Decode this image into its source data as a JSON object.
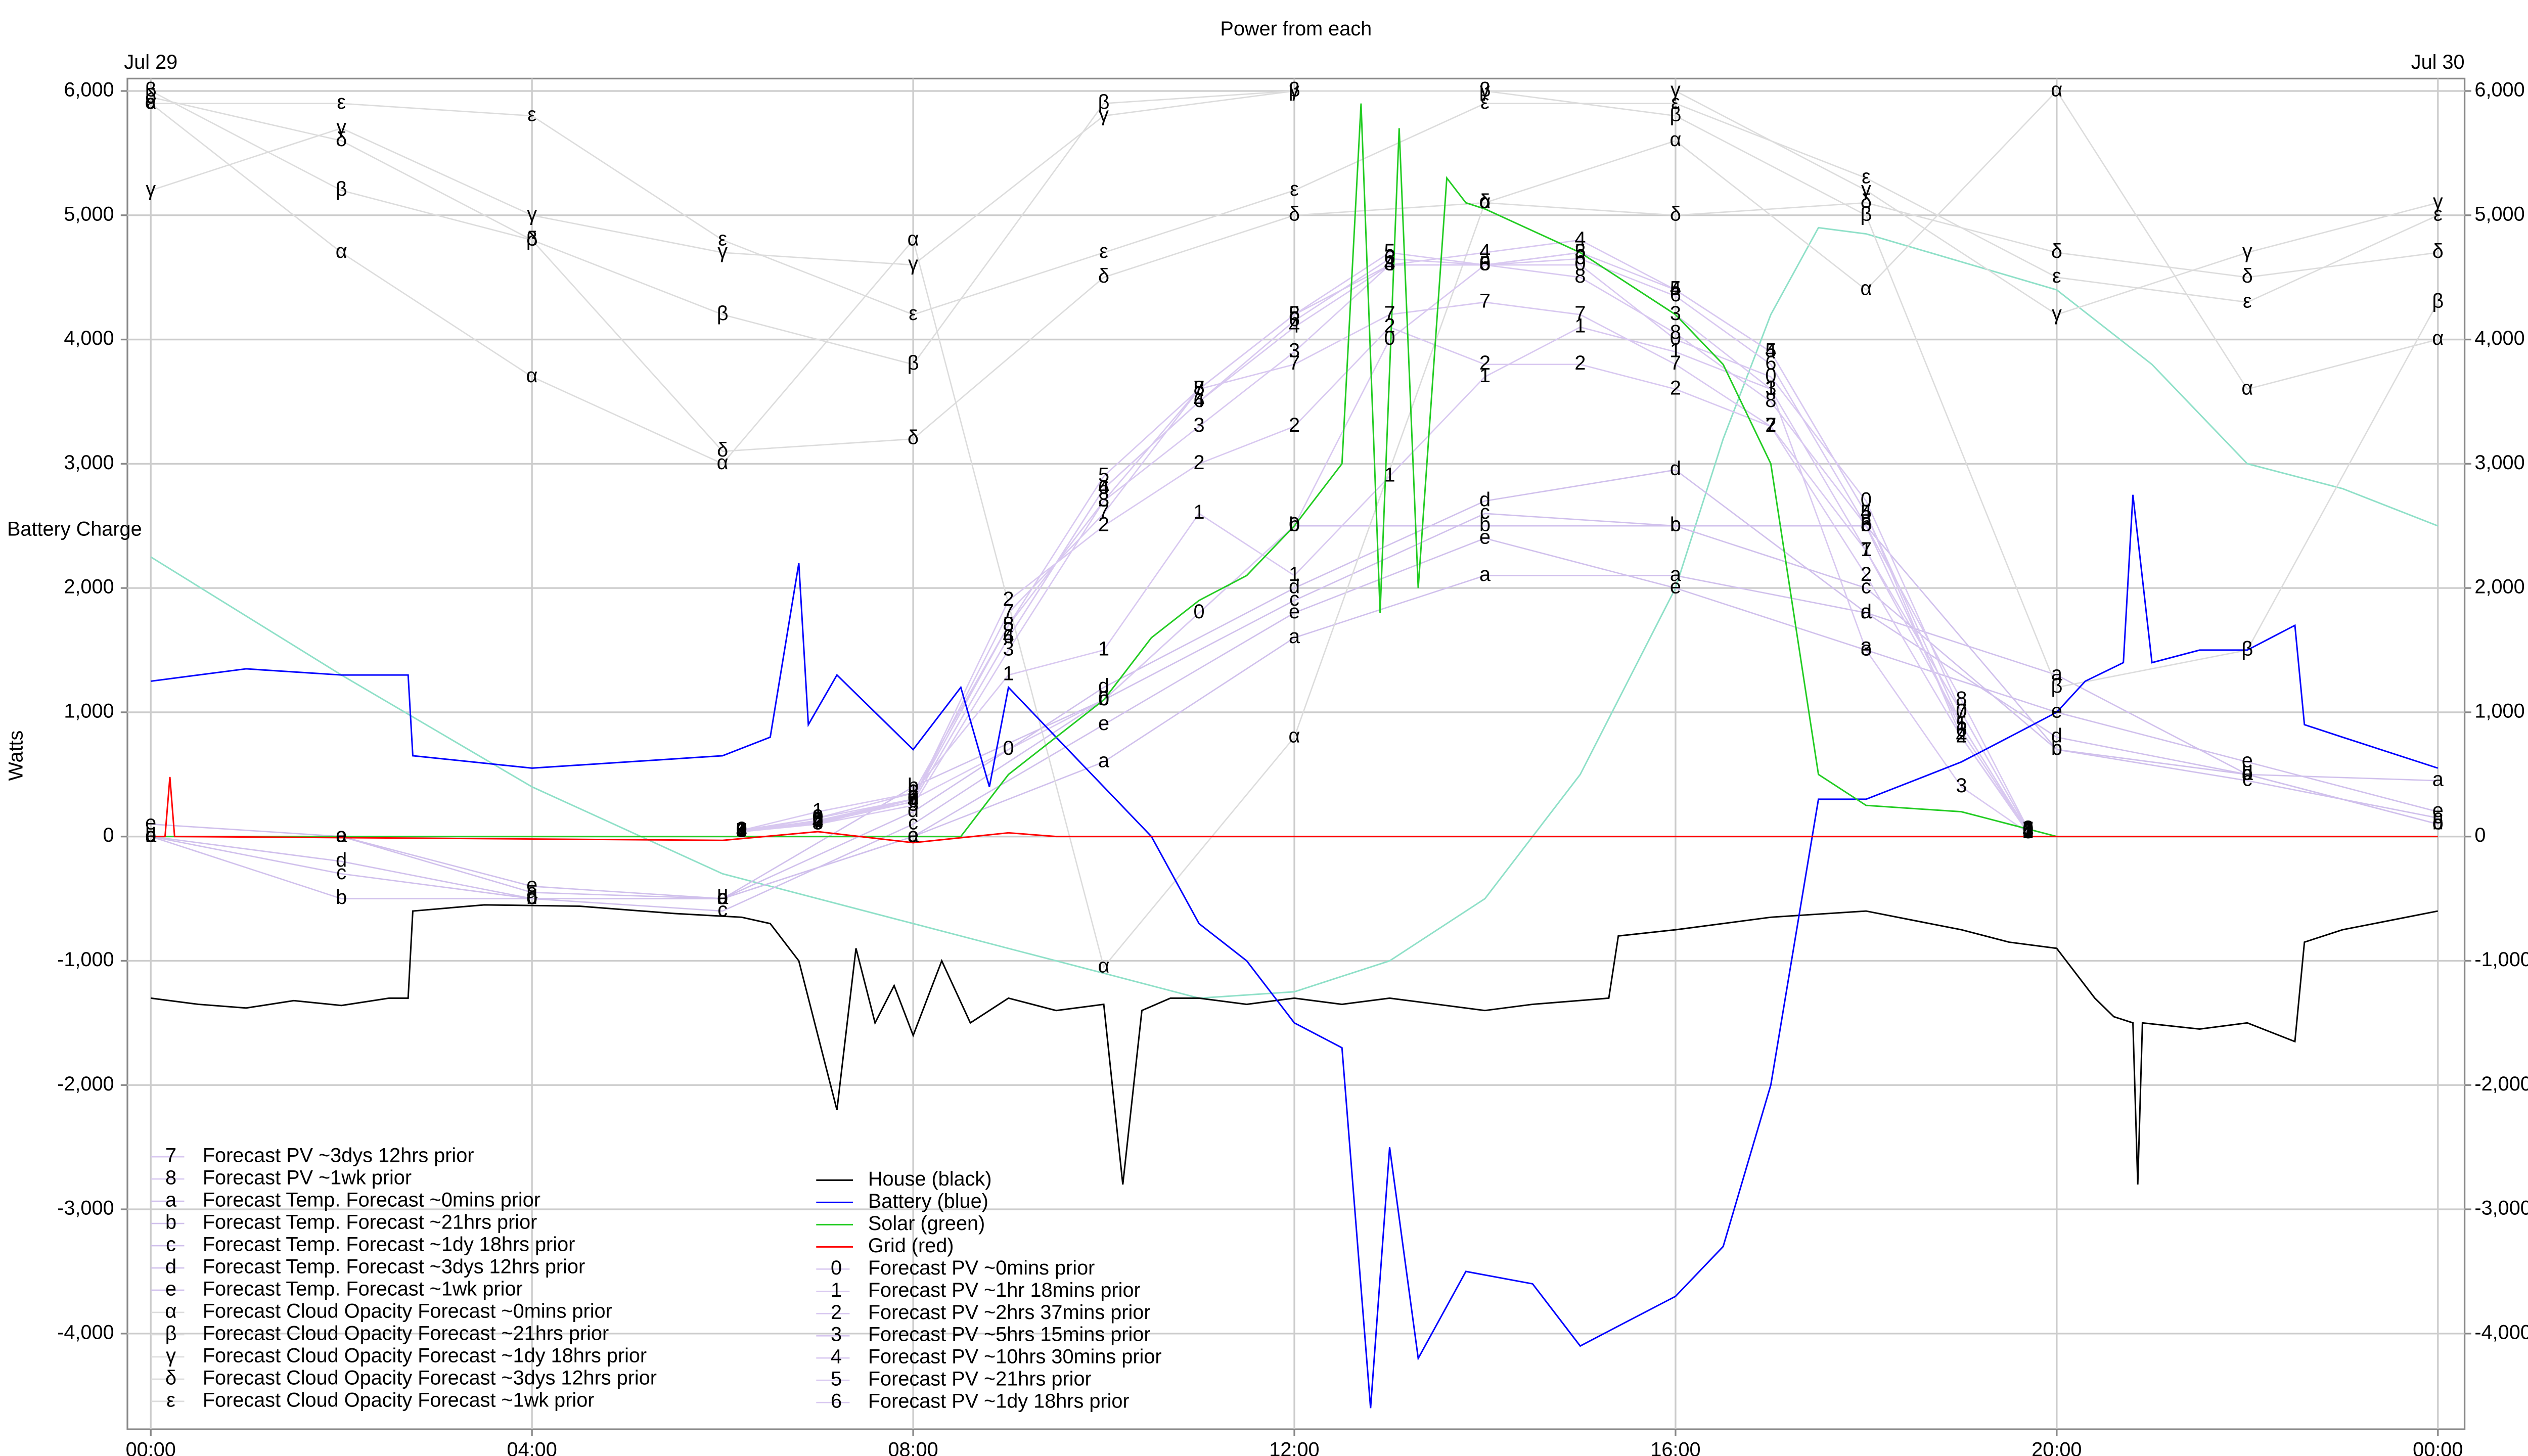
{
  "chart_data": {
    "type": "line",
    "title": "Power from each",
    "y_label": "Watts",
    "date_start": "Jul 29",
    "date_end": "Jul 30",
    "xlim": [
      -0.245,
      24.28
    ],
    "ylim": [
      -4770,
      6100
    ],
    "xticks": [
      {
        "value": 0,
        "label": "00:00"
      },
      {
        "value": 4,
        "label": "04:00"
      },
      {
        "value": 8,
        "label": "08:00"
      },
      {
        "value": 12,
        "label": "12:00"
      },
      {
        "value": 16,
        "label": "16:00"
      },
      {
        "value": 20,
        "label": "20:00"
      },
      {
        "value": 24,
        "label": "00:00"
      }
    ],
    "yticks": [
      {
        "value": -4000,
        "label": "-4,000"
      },
      {
        "value": -3000,
        "label": "-3,000"
      },
      {
        "value": -2000,
        "label": "-2,000"
      },
      {
        "value": -1000,
        "label": "-1,000"
      },
      0,
      {
        "value": 1000,
        "label": "1,000"
      },
      {
        "value": 2000,
        "label": "2,000"
      },
      {
        "value": 3000,
        "label": "3,000"
      },
      {
        "value": 4000,
        "label": "4,000"
      },
      {
        "value": 5000,
        "label": "5,000"
      },
      {
        "value": 6000,
        "label": "6,000"
      }
    ],
    "grid": true,
    "battery_charge": {
      "name": "Battery Charge",
      "color": "#8fe0c8",
      "x": [
        0,
        2,
        4,
        6,
        8,
        10,
        11,
        12,
        13,
        14,
        15,
        16,
        16.5,
        17,
        17.5,
        18,
        20,
        21,
        22,
        23,
        24
      ],
      "values": [
        2250,
        1300,
        400,
        -300,
        -700,
        -1100,
        -1300,
        -1250,
        -1000,
        -500,
        500,
        2000,
        3200,
        4200,
        4900,
        4850,
        4400,
        3800,
        3000,
        2800,
        2500
      ]
    },
    "series": [
      {
        "name": "Forecast PV ~3dys 12hrs prior",
        "marker": "7",
        "color": "#d8c8f0",
        "x": [
          6.2,
          7,
          8,
          9,
          10,
          11,
          12,
          13,
          14,
          15,
          16,
          17,
          18,
          19,
          19.7
        ],
        "values": [
          40,
          100,
          300,
          1800,
          2600,
          3600,
          3800,
          4200,
          4300,
          4200,
          3800,
          3300,
          2300,
          1000,
          50
        ]
      },
      {
        "name": "Forecast PV ~1wk prior",
        "marker": "8",
        "color": "#d8c8f0",
        "x": [
          6.2,
          7,
          8,
          9,
          10,
          11,
          12,
          13,
          14,
          15,
          16,
          17,
          18,
          19,
          19.7
        ],
        "values": [
          40,
          150,
          350,
          1700,
          2700,
          3600,
          4200,
          4600,
          4600,
          4500,
          4050,
          3500,
          2500,
          1100,
          60
        ]
      },
      {
        "name": "Forecast Temp. Forecast ~0mins prior",
        "marker": "a",
        "color": "#d0c0ec",
        "x": [
          0,
          2,
          4,
          6,
          8,
          10,
          12,
          14,
          16,
          18,
          20,
          22,
          24
        ],
        "values": [
          0,
          0,
          -450,
          -500,
          0,
          600,
          1600,
          2100,
          2100,
          1800,
          1300,
          500,
          450
        ]
      },
      {
        "name": "Forecast Temp. Forecast ~21hrs prior",
        "marker": "b",
        "color": "#d0c0ec",
        "x": [
          0,
          2,
          4,
          6,
          8,
          10,
          12,
          14,
          16,
          18,
          20,
          22,
          24
        ],
        "values": [
          0,
          -500,
          -500,
          -500,
          400,
          1100,
          2500,
          2500,
          2500,
          2500,
          700,
          500,
          100
        ]
      },
      {
        "name": "Forecast Temp. Forecast ~1dy 18hrs prior",
        "marker": "c",
        "color": "#d0c0ec",
        "x": [
          0,
          2,
          4,
          6,
          8,
          10,
          12,
          14,
          16,
          18,
          20,
          22,
          24
        ],
        "values": [
          0,
          -300,
          -500,
          -600,
          100,
          1100,
          1900,
          2600,
          2500,
          2000,
          700,
          450,
          150
        ]
      },
      {
        "name": "Forecast Temp. Forecast ~3dys 12hrs prior",
        "marker": "d",
        "color": "#d0c0ec",
        "x": [
          0,
          2,
          4,
          6,
          8,
          10,
          12,
          14,
          16,
          18,
          20,
          22,
          24
        ],
        "values": [
          0,
          -200,
          -500,
          -500,
          200,
          1200,
          2000,
          2700,
          2950,
          1800,
          800,
          500,
          100
        ]
      },
      {
        "name": "Forecast Temp. Forecast ~1wk prior",
        "marker": "e",
        "color": "#d0c0ec",
        "x": [
          0,
          2,
          4,
          6,
          8,
          10,
          12,
          14,
          16,
          18,
          20,
          22,
          24
        ],
        "values": [
          100,
          0,
          -400,
          -500,
          0,
          900,
          1800,
          2400,
          2000,
          1500,
          1000,
          600,
          200
        ]
      },
      {
        "name": "Forecast Cloud Opacity Forecast ~0mins prior",
        "marker": "α",
        "color": "#dcdcdc",
        "x": [
          0,
          2,
          4,
          6,
          8,
          10,
          12,
          14,
          16,
          18,
          20,
          22,
          24
        ],
        "values": [
          5900,
          4700,
          3700,
          3000,
          4800,
          -1050,
          800,
          5100,
          5600,
          4400,
          6000,
          3600,
          4000
        ]
      },
      {
        "name": "Forecast Cloud Opacity Forecast ~21hrs prior",
        "marker": "β",
        "color": "#dcdcdc",
        "x": [
          0,
          2,
          4,
          6,
          8,
          10,
          12,
          14,
          16,
          18,
          20,
          22,
          24
        ],
        "values": [
          6000,
          5200,
          4800,
          4200,
          3800,
          5900,
          6000,
          6000,
          5800,
          5000,
          1200,
          1500,
          4300
        ]
      },
      {
        "name": "Forecast Cloud Opacity Forecast ~1dy 18hrs prior",
        "marker": "γ",
        "color": "#dcdcdc",
        "x": [
          0,
          2,
          4,
          6,
          8,
          10,
          12,
          14,
          16,
          18,
          20,
          22,
          24
        ],
        "values": [
          5200,
          5700,
          5000,
          4700,
          4600,
          5800,
          6000,
          6000,
          6000,
          5200,
          4200,
          4700,
          5100
        ]
      },
      {
        "name": "Forecast Cloud Opacity Forecast ~3dys 12hrs prior",
        "marker": "δ",
        "color": "#dcdcdc",
        "x": [
          0,
          2,
          4,
          6,
          8,
          10,
          12,
          14,
          16,
          18,
          20,
          22,
          24
        ],
        "values": [
          5950,
          5600,
          4800,
          3100,
          3200,
          4500,
          5000,
          5100,
          5000,
          5100,
          4700,
          4500,
          4700
        ]
      },
      {
        "name": "Forecast Cloud Opacity Forecast ~1wk prior",
        "marker": "ε",
        "color": "#dcdcdc",
        "x": [
          0,
          2,
          4,
          6,
          8,
          10,
          12,
          14,
          16,
          18,
          20,
          22,
          24
        ],
        "values": [
          5900,
          5900,
          5800,
          4800,
          4200,
          4700,
          5200,
          5900,
          5900,
          5300,
          4500,
          4300,
          5000
        ]
      },
      {
        "name": "House (black)",
        "color": "#000000",
        "x": [
          0,
          0.5,
          1,
          1.5,
          2,
          2.5,
          2.7,
          2.75,
          3.5,
          4.5,
          5.5,
          6.2,
          6.5,
          6.8,
          7.0,
          7.2,
          7.4,
          7.6,
          7.8,
          8.0,
          8.3,
          8.6,
          9.0,
          9.5,
          10,
          10.2,
          10.4,
          10.7,
          11,
          11.5,
          12,
          12.5,
          13,
          13.5,
          14,
          14.5,
          15.3,
          15.4,
          16,
          17,
          18,
          19,
          19.5,
          20,
          20.4,
          20.6,
          20.8,
          20.85,
          20.9,
          21.5,
          22,
          22.5,
          22.6,
          23,
          24
        ],
        "values": [
          -1300,
          -1350,
          -1380,
          -1320,
          -1360,
          -1300,
          -1300,
          -600,
          -550,
          -560,
          -620,
          -650,
          -700,
          -1000,
          -1600,
          -2200,
          -900,
          -1500,
          -1200,
          -1600,
          -1000,
          -1500,
          -1300,
          -1400,
          -1350,
          -2800,
          -1400,
          -1300,
          -1300,
          -1350,
          -1300,
          -1350,
          -1300,
          -1350,
          -1400,
          -1350,
          -1300,
          -800,
          -750,
          -650,
          -600,
          -750,
          -850,
          -900,
          -1300,
          -1450,
          -1500,
          -2800,
          -1500,
          -1550,
          -1500,
          -1650,
          -850,
          -750,
          -600
        ]
      },
      {
        "name": "Battery (blue)",
        "color": "#0000ff",
        "x": [
          0,
          1,
          2,
          2.7,
          2.75,
          4,
          6,
          6.5,
          6.8,
          6.9,
          7.2,
          8,
          8.5,
          8.8,
          9,
          9.5,
          10,
          10.5,
          11,
          11.5,
          12,
          12.5,
          12.8,
          13,
          13.3,
          13.8,
          14.5,
          15,
          15.5,
          16,
          16.5,
          17,
          17.5,
          18,
          18.5,
          19,
          19.5,
          20,
          20.3,
          20.7,
          20.8,
          21,
          21.5,
          22,
          22.5,
          22.6,
          23,
          24
        ],
        "values": [
          1250,
          1350,
          1300,
          1300,
          650,
          550,
          650,
          800,
          2200,
          900,
          1300,
          700,
          1200,
          400,
          1200,
          800,
          400,
          0,
          -700,
          -1000,
          -1500,
          -1700,
          -4600,
          -2500,
          -4200,
          -3500,
          -3600,
          -4100,
          -3900,
          -3700,
          -3300,
          -2000,
          300,
          300,
          450,
          600,
          800,
          1000,
          1250,
          1400,
          2750,
          1400,
          1500,
          1500,
          1700,
          900,
          800,
          550
        ]
      },
      {
        "name": "Solar (green)",
        "color": "#22cc22",
        "x": [
          0,
          8.5,
          9,
          10,
          10.5,
          11,
          11.5,
          12,
          12.5,
          12.7,
          12.9,
          13.1,
          13.3,
          13.6,
          13.8,
          14,
          15,
          16,
          16.5,
          17,
          17.5,
          18,
          19,
          19.5,
          20,
          24
        ],
        "values": [
          0,
          0,
          500,
          1100,
          1600,
          1900,
          2100,
          2500,
          3000,
          5900,
          1800,
          5700,
          2000,
          5300,
          5100,
          5050,
          4700,
          4200,
          3800,
          3000,
          500,
          250,
          200,
          100,
          0,
          0
        ]
      },
      {
        "name": "Grid (red)",
        "color": "#ff0000",
        "x": [
          0,
          0.15,
          0.2,
          0.25,
          6,
          7,
          8,
          9,
          9.5,
          10,
          24
        ],
        "values": [
          0,
          0,
          480,
          0,
          -30,
          40,
          -50,
          30,
          0,
          0,
          0
        ]
      },
      {
        "name": "Forecast PV ~0mins prior",
        "marker": "0",
        "color": "#d8c8f0",
        "x": [
          6.2,
          7,
          8,
          9,
          10,
          11,
          12,
          13,
          14,
          15,
          16,
          17,
          18,
          19,
          19.7
        ],
        "values": [
          50,
          150,
          300,
          700,
          1100,
          1800,
          2500,
          4000,
          4600,
          4600,
          4000,
          3700,
          2700,
          1000,
          50
        ]
      },
      {
        "name": "Forecast PV ~1hr 18mins prior",
        "marker": "1",
        "color": "#d8c8f0",
        "x": [
          6.2,
          7,
          8,
          9,
          10,
          11,
          12,
          13,
          14,
          15,
          16,
          17,
          18,
          19,
          19.7
        ],
        "values": [
          50,
          200,
          350,
          1300,
          1500,
          2600,
          2100,
          2900,
          3700,
          4100,
          3900,
          3600,
          2300,
          900,
          40
        ]
      },
      {
        "name": "Forecast PV ~2hrs 37mins prior",
        "marker": "2",
        "color": "#d8c8f0",
        "x": [
          6.2,
          7,
          8,
          9,
          10,
          11,
          12,
          13,
          14,
          15,
          16,
          17,
          18,
          19,
          19.7
        ],
        "values": [
          50,
          120,
          300,
          1900,
          2500,
          3000,
          3300,
          4100,
          3800,
          3800,
          3600,
          3300,
          2100,
          800,
          30
        ]
      },
      {
        "name": "Forecast PV ~5hrs 15mins prior",
        "marker": "3",
        "color": "#d8c8f0",
        "x": [
          6.2,
          7,
          8,
          9,
          10,
          11,
          12,
          13,
          14,
          15,
          16,
          17,
          18,
          19,
          19.7
        ],
        "values": [
          40,
          100,
          250,
          1500,
          2700,
          3300,
          3900,
          4600,
          4600,
          4700,
          4200,
          3600,
          1500,
          400,
          30
        ]
      },
      {
        "name": "Forecast PV ~10hrs 30mins prior",
        "marker": "4",
        "color": "#d8c8f0",
        "x": [
          6.2,
          7,
          8,
          9,
          10,
          11,
          12,
          13,
          14,
          15,
          16,
          17,
          18,
          19,
          19.7
        ],
        "values": [
          40,
          110,
          280,
          1600,
          2800,
          3500,
          4100,
          4600,
          4700,
          4800,
          4400,
          3900,
          2600,
          800,
          40
        ]
      },
      {
        "name": "Forecast PV ~21hrs prior",
        "marker": "5",
        "color": "#d8c8f0",
        "x": [
          6.2,
          7,
          8,
          9,
          10,
          11,
          12,
          13,
          14,
          15,
          16,
          17,
          18,
          19,
          19.7
        ],
        "values": [
          40,
          130,
          300,
          1700,
          2900,
          3600,
          4200,
          4700,
          4600,
          4700,
          4400,
          3900,
          2600,
          900,
          40
        ]
      },
      {
        "name": "Forecast PV ~1dy 18hrs prior",
        "marker": "6",
        "color": "#d8c8f0",
        "x": [
          6.2,
          7,
          8,
          9,
          10,
          11,
          12,
          13,
          14,
          15,
          16,
          17,
          18,
          19,
          19.7
        ],
        "values": [
          40,
          120,
          280,
          1600,
          2800,
          3500,
          4150,
          4650,
          4600,
          4650,
          4350,
          3800,
          2500,
          850,
          40
        ]
      }
    ]
  }
}
